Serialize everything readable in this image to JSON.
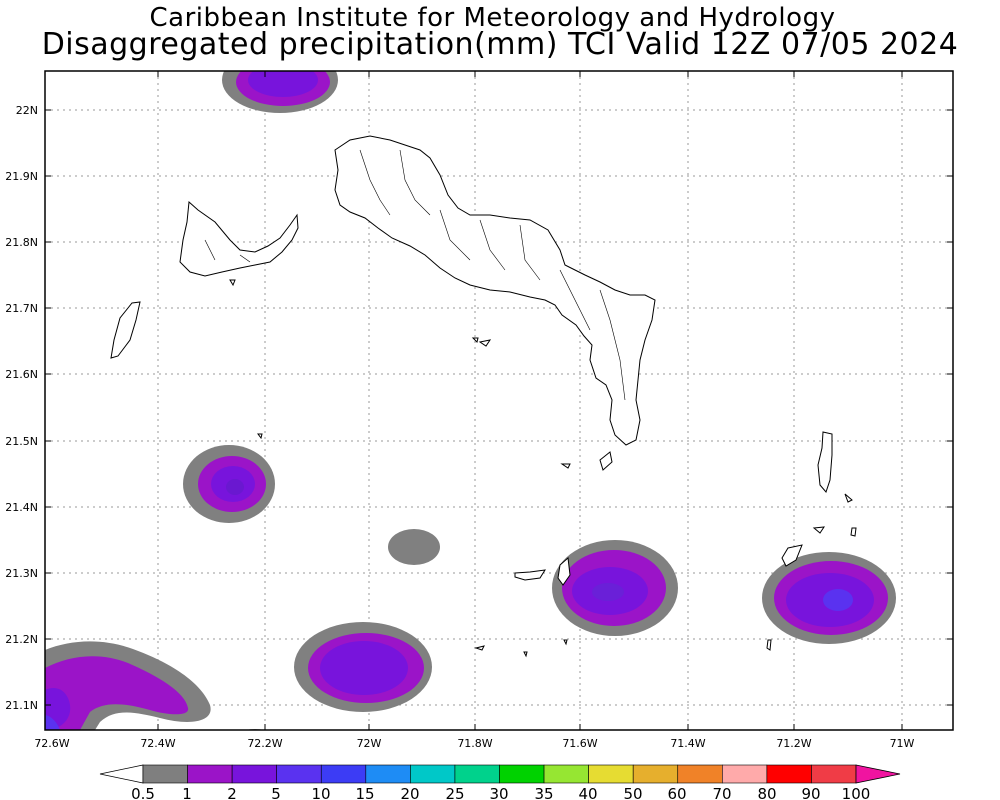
{
  "title": {
    "line1": "Caribbean Institute for Meteorology and Hydrology",
    "line2": "Disaggregated precipitation(mm) TCI Valid 12Z 07/05 2024"
  },
  "axes": {
    "lat_labels": [
      "21.1N",
      "21.2N",
      "21.3N",
      "21.4N",
      "21.5N",
      "21.6N",
      "21.7N",
      "21.8N",
      "21.9N",
      "22N"
    ],
    "lon_labels": [
      "72.6W",
      "72.4W",
      "72.2W",
      "72W",
      "71.8W",
      "71.6W",
      "71.4W",
      "71.2W",
      "71W"
    ]
  },
  "colorbar": {
    "labels": [
      "0.5",
      "1",
      "2",
      "5",
      "10",
      "15",
      "20",
      "25",
      "30",
      "35",
      "40",
      "50",
      "60",
      "70",
      "80",
      "90",
      "100"
    ],
    "colors": [
      "#7f7f7f",
      "#9b14c8",
      "#7814dc",
      "#5a32f0",
      "#3c3cf5",
      "#1e8cf5",
      "#00c8c8",
      "#00d28c",
      "#00d200",
      "#96e632",
      "#e6dc32",
      "#e6af2d",
      "#f08228",
      "#ffaaaa",
      "#ff0000",
      "#f03c46"
    ],
    "under_color": "#ffffff",
    "over_color": "#f014a0"
  },
  "precip_legend": {
    "gray": "#808080",
    "violet": "#9b14c8",
    "purple": "#7814dc",
    "blue_violet": "#5a32f0"
  }
}
